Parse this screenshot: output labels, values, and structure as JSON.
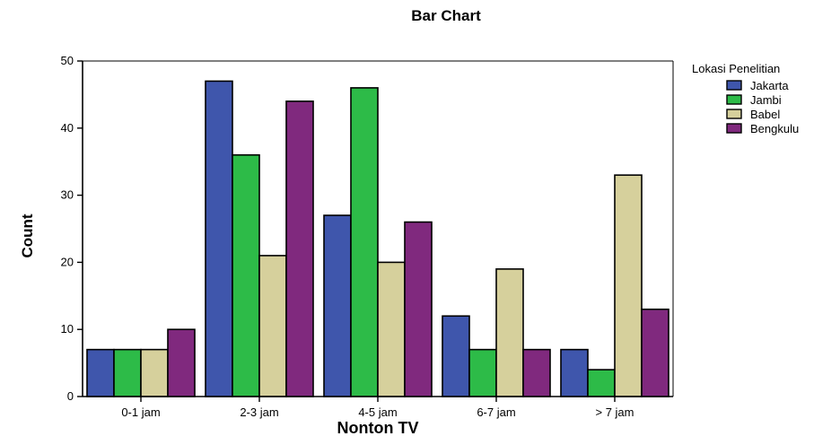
{
  "chart_data": {
    "type": "bar",
    "title": "Bar Chart",
    "xlabel": "Nonton TV",
    "ylabel": "Count",
    "categories": [
      "0-1 jam",
      "2-3 jam",
      "4-5 jam",
      "6-7 jam",
      "> 7 jam"
    ],
    "ylim": [
      0,
      50
    ],
    "yticks": [
      0,
      10,
      20,
      30,
      40,
      50
    ],
    "grid": false,
    "legend_title": "Lokasi Penelitian",
    "legend_position": "right",
    "series": [
      {
        "name": "Jakarta",
        "color": "#3F56AC",
        "values": [
          7,
          47,
          27,
          12,
          7
        ]
      },
      {
        "name": "Jambi",
        "color": "#2DBB48",
        "values": [
          7,
          36,
          46,
          7,
          4
        ]
      },
      {
        "name": "Babel",
        "color": "#D6D09C",
        "values": [
          7,
          21,
          20,
          19,
          33
        ]
      },
      {
        "name": "Bengkulu",
        "color": "#80297E",
        "values": [
          10,
          44,
          26,
          7,
          13
        ]
      }
    ]
  }
}
